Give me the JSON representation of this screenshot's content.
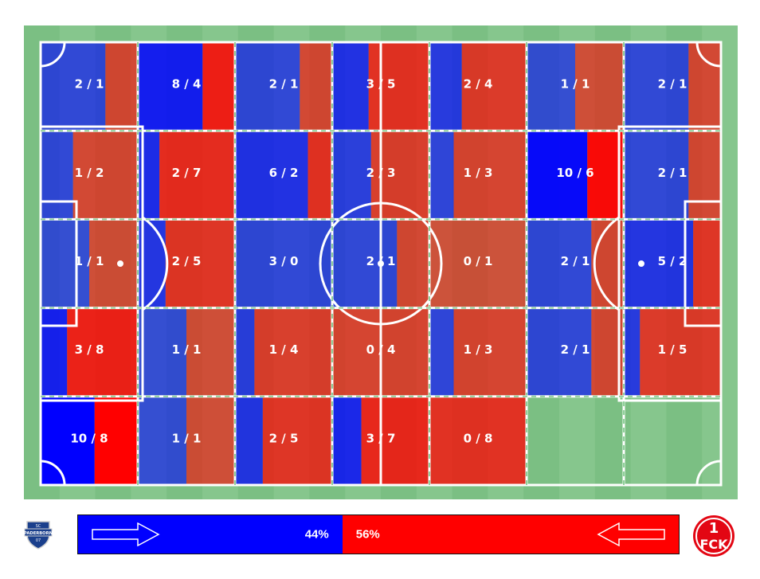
{
  "colors": {
    "home": "#0000ff",
    "away": "#ff0000",
    "pitch_light": "#86c68d",
    "pitch_dark": "#7bbf83",
    "lines": "#ffffff"
  },
  "teams": {
    "home": {
      "name": "SC Paderborn 07",
      "logo_text": "SC PADERBORN 07"
    },
    "away": {
      "name": "1. FC Kaiserslautern",
      "logo_text": "1 FCK"
    }
  },
  "possession": {
    "home_pct": 44,
    "away_pct": 56,
    "home_label": "44%",
    "away_label": "56%"
  },
  "chart_data": {
    "type": "heatmap",
    "description_grid": "7 columns x 5 rows zone grid; each cell value is home / away",
    "columns": 7,
    "rows": 5,
    "cells": [
      [
        {
          "home": 2,
          "away": 1,
          "label": "2 / 1"
        },
        {
          "home": 8,
          "away": 4,
          "label": "8 / 4"
        },
        {
          "home": 2,
          "away": 1,
          "label": "2 / 1"
        },
        {
          "home": 3,
          "away": 5,
          "label": "3 / 5"
        },
        {
          "home": 2,
          "away": 4,
          "label": "2 / 4"
        },
        {
          "home": 1,
          "away": 1,
          "label": "1 / 1"
        },
        {
          "home": 2,
          "away": 1,
          "label": "2 / 1"
        }
      ],
      [
        {
          "home": 1,
          "away": 2,
          "label": "1 / 2"
        },
        {
          "home": 2,
          "away": 7,
          "label": "2 / 7"
        },
        {
          "home": 6,
          "away": 2,
          "label": "6 / 2"
        },
        {
          "home": 2,
          "away": 3,
          "label": "2 / 3"
        },
        {
          "home": 1,
          "away": 3,
          "label": "1 / 3"
        },
        {
          "home": 10,
          "away": 6,
          "label": "10 / 6"
        },
        {
          "home": 2,
          "away": 1,
          "label": "2 / 1"
        }
      ],
      [
        {
          "home": 1,
          "away": 1,
          "label": "1 / 1"
        },
        {
          "home": 2,
          "away": 5,
          "label": "2 / 5"
        },
        {
          "home": 3,
          "away": 0,
          "label": "3 / 0"
        },
        {
          "home": 2,
          "away": 1,
          "label": "2 / 1"
        },
        {
          "home": 0,
          "away": 1,
          "label": "0 / 1"
        },
        {
          "home": 2,
          "away": 1,
          "label": "2 / 1"
        },
        {
          "home": 5,
          "away": 2,
          "label": "5 / 2"
        }
      ],
      [
        {
          "home": 3,
          "away": 8,
          "label": "3 / 8"
        },
        {
          "home": 1,
          "away": 1,
          "label": "1 / 1"
        },
        {
          "home": 1,
          "away": 4,
          "label": "1 / 4"
        },
        {
          "home": 0,
          "away": 4,
          "label": "0 / 4"
        },
        {
          "home": 1,
          "away": 3,
          "label": "1 / 3"
        },
        {
          "home": 2,
          "away": 1,
          "label": "2 / 1"
        },
        {
          "home": 1,
          "away": 5,
          "label": "1 / 5"
        }
      ],
      [
        {
          "home": 10,
          "away": 8,
          "label": "10 / 8"
        },
        {
          "home": 1,
          "away": 1,
          "label": "1 / 1"
        },
        {
          "home": 2,
          "away": 5,
          "label": "2 / 5"
        },
        {
          "home": 3,
          "away": 7,
          "label": "3 / 7"
        },
        {
          "home": 0,
          "away": 8,
          "label": "0 / 8"
        },
        null,
        null
      ]
    ],
    "legend": [
      "44%",
      "56%"
    ]
  }
}
